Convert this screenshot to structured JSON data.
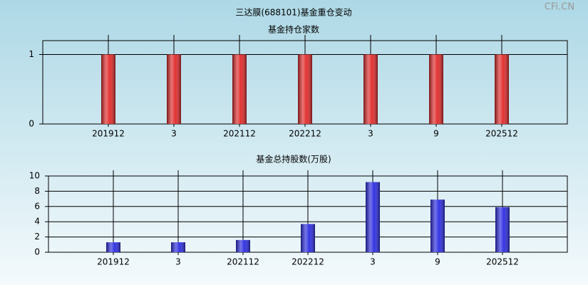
{
  "watermark": "CFi.CN",
  "chart_data": [
    {
      "type": "bar",
      "title": "三达膜(688101)基金重仓变动",
      "subtitle": "基金持仓家数",
      "categories": [
        "201912",
        "3",
        "202112",
        "202212",
        "3",
        "9",
        "202512"
      ],
      "values": [
        1,
        1,
        1,
        1,
        1,
        1,
        1
      ],
      "color": "#e02828",
      "ylim": [
        0,
        1.2
      ],
      "yticks": [
        0,
        1
      ],
      "grid": true
    },
    {
      "type": "bar",
      "subtitle": "基金总持股数(万股)",
      "categories": [
        "201912",
        "3",
        "202112",
        "202212",
        "3",
        "9",
        "202512"
      ],
      "values": [
        1.3,
        1.3,
        1.6,
        3.7,
        9.2,
        6.9,
        5.9
      ],
      "color": "#2a2ae0",
      "ylim": [
        0,
        10
      ],
      "yticks": [
        0,
        2,
        4,
        6,
        8,
        10
      ],
      "grid": true
    }
  ]
}
